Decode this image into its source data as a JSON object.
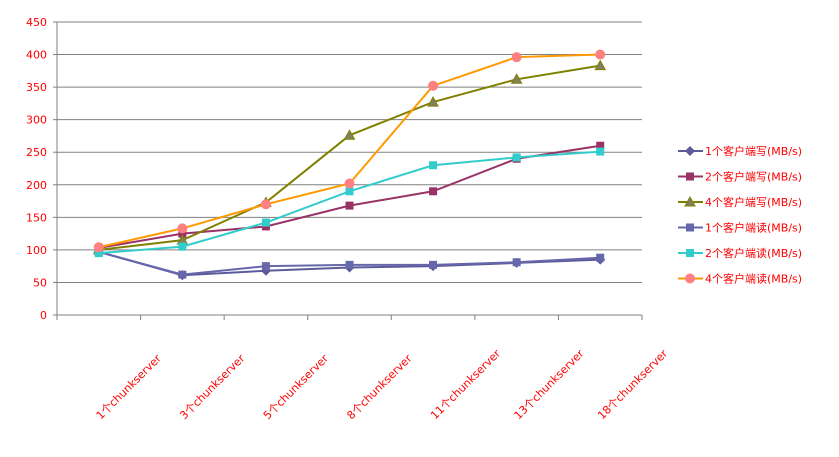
{
  "chart_data": {
    "type": "line",
    "title": "",
    "xlabel": "",
    "ylabel": "",
    "ylim": [
      0,
      450
    ],
    "yticks": [
      0,
      50,
      100,
      150,
      200,
      250,
      300,
      350,
      400,
      450
    ],
    "grid": true,
    "legend_position": "right",
    "categories": [
      "1个chunkserver",
      "3个chunkserver",
      "5个chunkserver",
      "8个chunkserver",
      "11个chunkserver",
      "13个chunkserver",
      "18个chunkserver"
    ],
    "series": [
      {
        "name": "1个客户端写(MB/s)",
        "color": "#5B5B9B",
        "marker": "diamond",
        "values": [
          97,
          61,
          68,
          73,
          75,
          80,
          85
        ]
      },
      {
        "name": "2个客户端写(MB/s)",
        "color": "#993366",
        "marker": "square",
        "values": [
          103,
          125,
          136,
          168,
          190,
          240,
          260
        ]
      },
      {
        "name": "4个客户端写(MB/s)",
        "color": "#808000",
        "marker": "triangle",
        "values": [
          100,
          115,
          173,
          276,
          327,
          362,
          383
        ]
      },
      {
        "name": "1个客户端读(MB/s)",
        "color": "#6666AA",
        "marker": "square",
        "values": [
          97,
          62,
          75,
          77,
          77,
          81,
          88
        ]
      },
      {
        "name": "2个客户端读(MB/s)",
        "color": "#33CCCC",
        "marker": "square",
        "values": [
          95,
          105,
          142,
          190,
          230,
          242,
          251
        ]
      },
      {
        "name": "4个客户端读(MB/s)",
        "color": "#FF9900",
        "marker": "circle",
        "values": [
          104,
          133,
          170,
          202,
          352,
          396,
          400
        ]
      }
    ],
    "text_color": "#FF0000"
  }
}
